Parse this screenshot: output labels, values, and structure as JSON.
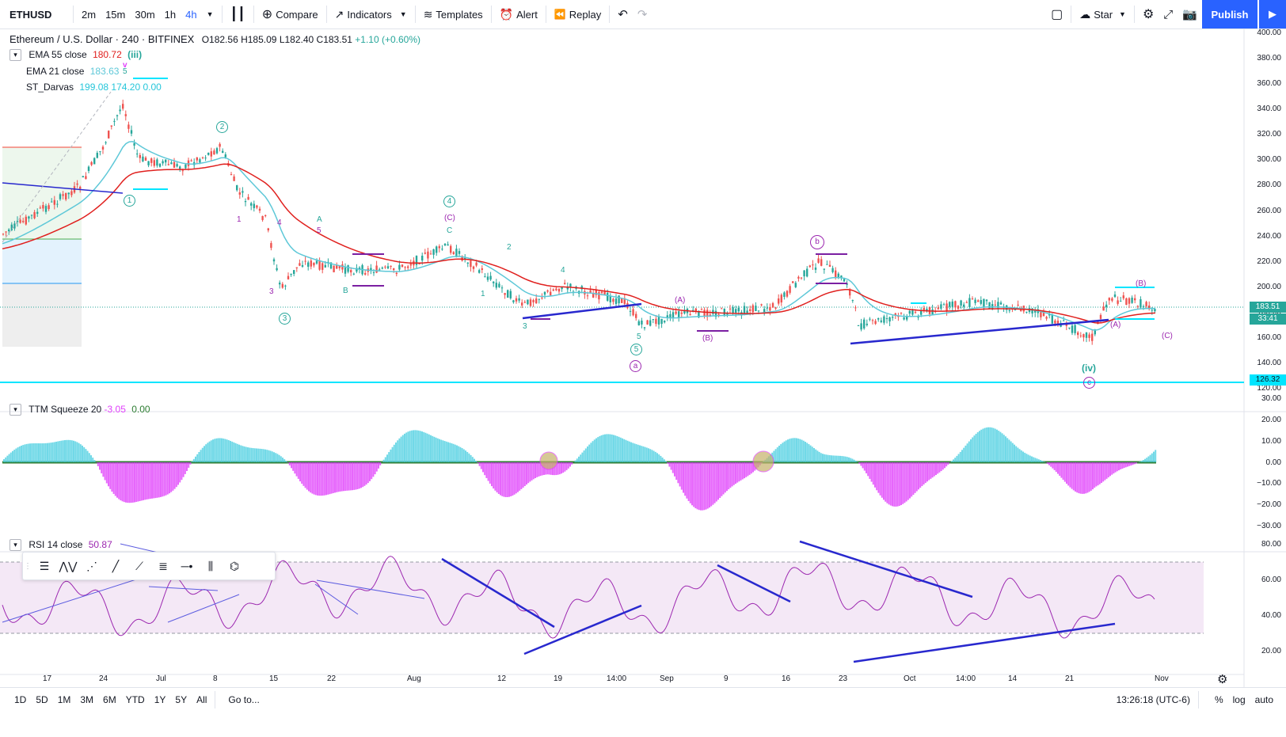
{
  "topbar": {
    "symbol": "ETHUSD",
    "intervals": [
      "2m",
      "15m",
      "30m",
      "1h",
      "4h"
    ],
    "active_interval": "4h",
    "compare": "Compare",
    "indicators": "Indicators",
    "templates": "Templates",
    "alert": "Alert",
    "replay": "Replay",
    "layout_name": "Star",
    "publish": "Publish"
  },
  "main_legend": {
    "title": "Ethereum / U.S. Dollar · 240 · BITFINEX",
    "o": "O182.56",
    "h": "H185.09",
    "l": "L182.40",
    "c": "C183.51",
    "chg": "+1.10 (+0.60%)",
    "ema55_name": "EMA 55 close",
    "ema55_val": "180.72",
    "ema21_name": "EMA 21 close",
    "ema21_val": "183.63",
    "darvas_name": "ST_Darvas",
    "darvas_v1": "199.08",
    "darvas_v2": "174.20",
    "darvas_v3": "0.00",
    "wave_iii": "(iii)",
    "wave_v": "v",
    "wave_5": "5"
  },
  "price_axis": {
    "labels": [
      "400.00",
      "380.00",
      "360.00",
      "340.00",
      "320.00",
      "300.00",
      "280.00",
      "260.00",
      "240.00",
      "220.00",
      "200.00",
      "180.00",
      "160.00",
      "140.00",
      "120.00"
    ],
    "current_price": "183.51",
    "countdown": "33:41",
    "line_price": "126.32"
  },
  "ttm": {
    "name": "TTM Squeeze 20",
    "v1": "-3.05",
    "v2": "0.00",
    "axis": [
      "30.00",
      "20.00",
      "10.00",
      "0.00",
      "−10.00",
      "−20.00",
      "−30.00"
    ]
  },
  "rsi": {
    "name": "RSI 14 close",
    "value": "50.87",
    "axis": [
      "80.00",
      "60.00",
      "40.00",
      "20.00"
    ]
  },
  "time_axis": [
    "17",
    "24",
    "Jul",
    "8",
    "15",
    "22",
    "Aug",
    "12",
    "19",
    "14:00",
    "Sep",
    "9",
    "16",
    "23",
    "Oct",
    "14:00",
    "14",
    "21",
    "Nov"
  ],
  "wave_labels": {
    "w1": "1",
    "w2": "2",
    "w3": "3",
    "w4": "4",
    "w5": "5",
    "a": "a",
    "b": "b",
    "c": "c",
    "iv": "(iv)",
    "A": "A",
    "B": "B",
    "C": "C",
    "pA": "(A)",
    "pB": "(B)",
    "pC": "(C)"
  },
  "bottombar": {
    "ranges": [
      "1D",
      "5D",
      "1M",
      "3M",
      "6M",
      "YTD",
      "1Y",
      "5Y",
      "All"
    ],
    "goto": "Go to...",
    "clock": "13:26:18 (UTC-6)",
    "pct": "%",
    "log": "log",
    "auto": "auto"
  },
  "colors": {
    "accent": "#2962ff",
    "ema55": "#e0201e",
    "ema21": "#5ec8d8",
    "darvas": "#00e5ff",
    "bull_candle": "#26a69a",
    "bear_candle": "#ef5350",
    "rsi_line": "#9c27b0",
    "squeeze_pos": "#4dd0e1",
    "squeeze_neg": "#e040fb"
  }
}
